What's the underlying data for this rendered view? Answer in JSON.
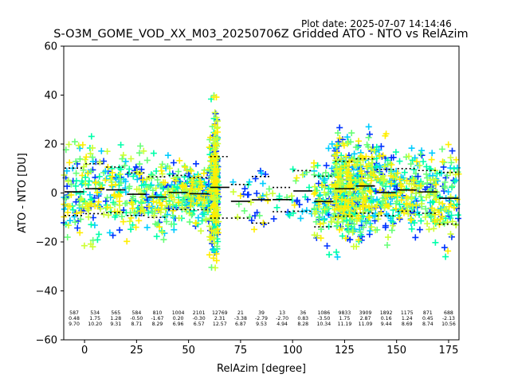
{
  "plot_date": "Plot date: 2025-07-07 14:14:46",
  "chart_data": {
    "type": "scatter",
    "title": "S-O3M_GOME_VOD_XX_M03_20250706Z Gridded ATO - NTO vs RelAzim",
    "xlabel": "RelAzim [degree]",
    "ylabel": "ATO - NTO [DU]",
    "xlim": [
      -10,
      180
    ],
    "ylim": [
      -60,
      60
    ],
    "xticks": [
      0,
      25,
      50,
      75,
      100,
      125,
      150,
      175
    ],
    "yticks": [
      -60,
      -40,
      -20,
      0,
      20,
      40,
      60
    ],
    "grid": false,
    "legend": "none",
    "point_colors": [
      "#0033ff",
      "#00ccff",
      "#00ffaa",
      "#66ff77",
      "#ccff33",
      "#ffee00"
    ],
    "mean_line_color": "#000000",
    "stat_note": "rows per bin: count, mean, standard deviation; solid segment = mean, dotted segments = mean ± std",
    "bins": [
      {
        "x0": -10,
        "x1": 0,
        "n": "587",
        "mean": "0.48",
        "std": "9.70"
      },
      {
        "x0": 0,
        "x1": 10,
        "n": "534",
        "mean": "1.75",
        "std": "10.20"
      },
      {
        "x0": 10,
        "x1": 20,
        "n": "565",
        "mean": "1.28",
        "std": "9.31"
      },
      {
        "x0": 20,
        "x1": 30,
        "n": "584",
        "mean": "-0.50",
        "std": "8.71"
      },
      {
        "x0": 30,
        "x1": 40,
        "n": "810",
        "mean": "-1.67",
        "std": "8.29"
      },
      {
        "x0": 40,
        "x1": 50,
        "n": "1004",
        "mean": "0.20",
        "std": "6.96"
      },
      {
        "x0": 50,
        "x1": 60,
        "n": "2101",
        "mean": "-0.30",
        "std": "6.57"
      },
      {
        "x0": 60,
        "x1": 70,
        "n": "12769",
        "mean": "2.31",
        "std": "12.57"
      },
      {
        "x0": 70,
        "x1": 80,
        "n": "21",
        "mean": "-3.38",
        "std": "6.87"
      },
      {
        "x0": 80,
        "x1": 90,
        "n": "39",
        "mean": "-2.79",
        "std": "9.53"
      },
      {
        "x0": 90,
        "x1": 100,
        "n": "13",
        "mean": "-2.70",
        "std": "4.94"
      },
      {
        "x0": 100,
        "x1": 110,
        "n": "36",
        "mean": "0.83",
        "std": "8.28"
      },
      {
        "x0": 110,
        "x1": 120,
        "n": "1086",
        "mean": "-3.50",
        "std": "10.34"
      },
      {
        "x0": 120,
        "x1": 130,
        "n": "9833",
        "mean": "1.75",
        "std": "11.19"
      },
      {
        "x0": 130,
        "x1": 140,
        "n": "3909",
        "mean": "2.87",
        "std": "11.09"
      },
      {
        "x0": 140,
        "x1": 150,
        "n": "1892",
        "mean": "0.16",
        "std": "9.44"
      },
      {
        "x0": 150,
        "x1": 160,
        "n": "1175",
        "mean": "1.24",
        "std": "8.69"
      },
      {
        "x0": 160,
        "x1": 170,
        "n": "871",
        "mean": "0.45",
        "std": "8.74"
      },
      {
        "x0": 170,
        "x1": 180,
        "n": "688",
        "mean": "-2.13",
        "std": "10.56"
      }
    ]
  }
}
